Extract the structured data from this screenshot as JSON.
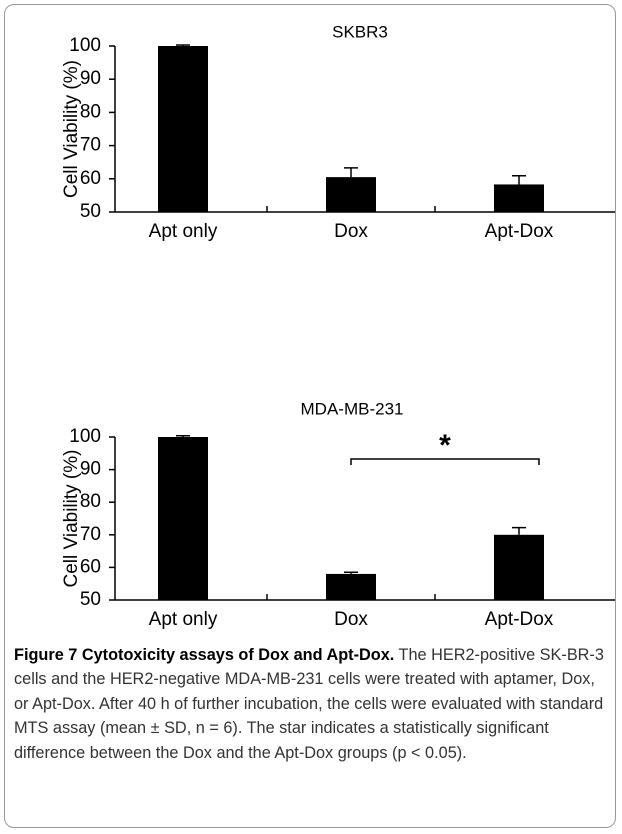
{
  "chart_data": [
    {
      "type": "bar",
      "title": "SKBR3",
      "y_label": "Cell Viability (%)",
      "categories": [
        "Apt only",
        "Dox",
        "Apt-Dox"
      ],
      "values": [
        100,
        60.5,
        58.3
      ],
      "errors": [
        0.3,
        2.8,
        2.6
      ],
      "color": "#000000",
      "ylim": [
        50,
        100
      ],
      "yticks": [
        50,
        60,
        70,
        80,
        90,
        100
      ],
      "grid": false
    },
    {
      "type": "bar",
      "title": "MDA-MB-231",
      "y_label": "Cell Viability (%)",
      "categories": [
        "Apt only",
        "Dox",
        "Apt-Dox"
      ],
      "values": [
        100,
        58,
        70
      ],
      "errors": [
        0.4,
        0.5,
        2.2
      ],
      "color": "#000000",
      "ylim": [
        50,
        100
      ],
      "yticks": [
        50,
        60,
        70,
        80,
        90,
        100
      ],
      "grid": false,
      "annotation": "*"
    }
  ],
  "caption": {
    "label": "Figure 7 Cytotoxicity assays of Dox and Apt-Dox.",
    "text": "The HER2-positive SK-BR-3 cells and the HER2-negative MDA-MB-231 cells were treated with aptamer, Dox, or Apt-Dox. After 40 h of further incubation, the cells were evaluated with standard MTS assay (mean ± SD, n = 6). The star indicates a statistically significant difference between the Dox and the Apt-Dox groups (p < 0.05)."
  }
}
